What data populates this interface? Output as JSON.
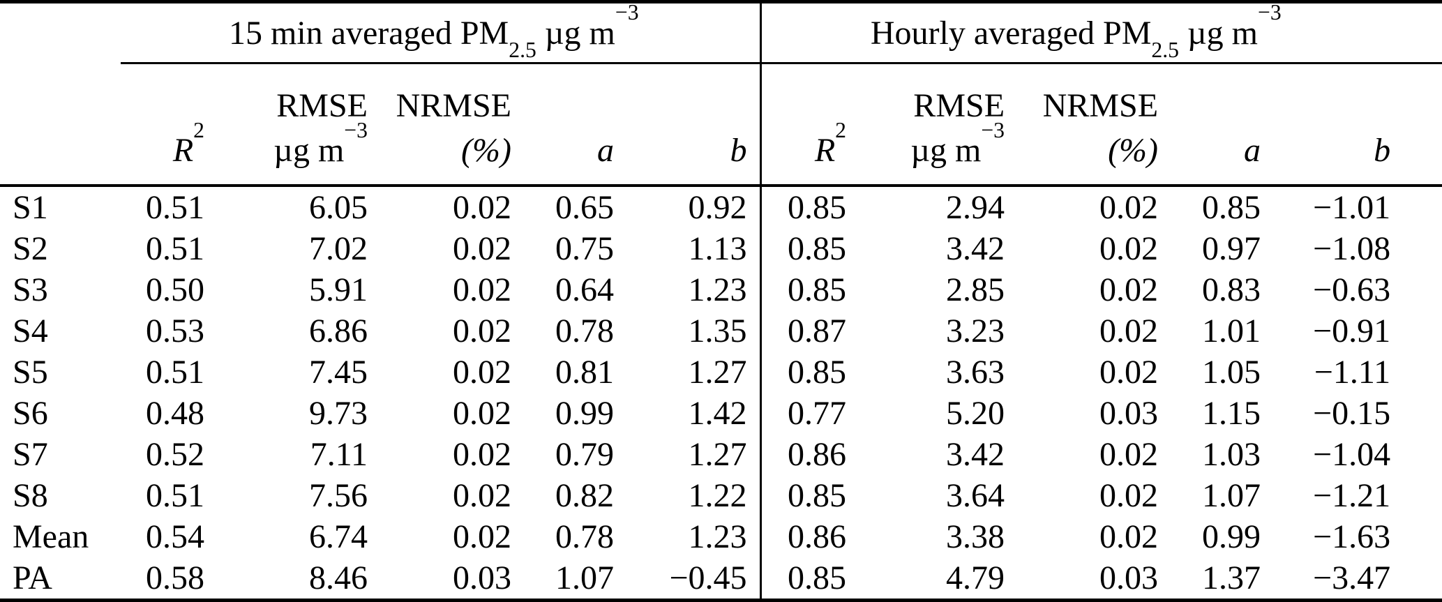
{
  "table": {
    "groups": [
      {
        "prefix": "15 min averaged PM",
        "sub": "2.5",
        "unit": " µg m",
        "sup": "−3"
      },
      {
        "prefix": "Hourly averaged PM",
        "sub": "2.5",
        "unit": " µg m",
        "sup": "−3"
      }
    ],
    "cols": {
      "r2_base": "R",
      "r2_sup": "2",
      "rmse": "RMSE",
      "unit_base": "µg m",
      "unit_sup": "−3",
      "nrmse": "NRMSE",
      "pct": "(%)",
      "a": "a",
      "b": "b"
    },
    "rows": [
      {
        "label": "S1",
        "m15": [
          "0.51",
          "6.05",
          "0.02",
          "0.65",
          "0.92"
        ],
        "hourly": [
          "0.85",
          "2.94",
          "0.02",
          "0.85",
          "−1.01"
        ]
      },
      {
        "label": "S2",
        "m15": [
          "0.51",
          "7.02",
          "0.02",
          "0.75",
          "1.13"
        ],
        "hourly": [
          "0.85",
          "3.42",
          "0.02",
          "0.97",
          "−1.08"
        ]
      },
      {
        "label": "S3",
        "m15": [
          "0.50",
          "5.91",
          "0.02",
          "0.64",
          "1.23"
        ],
        "hourly": [
          "0.85",
          "2.85",
          "0.02",
          "0.83",
          "−0.63"
        ]
      },
      {
        "label": "S4",
        "m15": [
          "0.53",
          "6.86",
          "0.02",
          "0.78",
          "1.35"
        ],
        "hourly": [
          "0.87",
          "3.23",
          "0.02",
          "1.01",
          "−0.91"
        ]
      },
      {
        "label": "S5",
        "m15": [
          "0.51",
          "7.45",
          "0.02",
          "0.81",
          "1.27"
        ],
        "hourly": [
          "0.85",
          "3.63",
          "0.02",
          "1.05",
          "−1.11"
        ]
      },
      {
        "label": "S6",
        "m15": [
          "0.48",
          "9.73",
          "0.02",
          "0.99",
          "1.42"
        ],
        "hourly": [
          "0.77",
          "5.20",
          "0.03",
          "1.15",
          "−0.15"
        ]
      },
      {
        "label": "S7",
        "m15": [
          "0.52",
          "7.11",
          "0.02",
          "0.79",
          "1.27"
        ],
        "hourly": [
          "0.86",
          "3.42",
          "0.02",
          "1.03",
          "−1.04"
        ]
      },
      {
        "label": "S8",
        "m15": [
          "0.51",
          "7.56",
          "0.02",
          "0.82",
          "1.22"
        ],
        "hourly": [
          "0.85",
          "3.64",
          "0.02",
          "1.07",
          "−1.21"
        ]
      },
      {
        "label": "Mean",
        "m15": [
          "0.54",
          "6.74",
          "0.02",
          "0.78",
          "1.23"
        ],
        "hourly": [
          "0.86",
          "3.38",
          "0.02",
          "0.99",
          "−1.63"
        ]
      },
      {
        "label": "PA",
        "m15": [
          "0.58",
          "8.46",
          "0.03",
          "1.07",
          "−0.45"
        ],
        "hourly": [
          "0.85",
          "4.79",
          "0.03",
          "1.37",
          "−3.47"
        ]
      }
    ]
  }
}
